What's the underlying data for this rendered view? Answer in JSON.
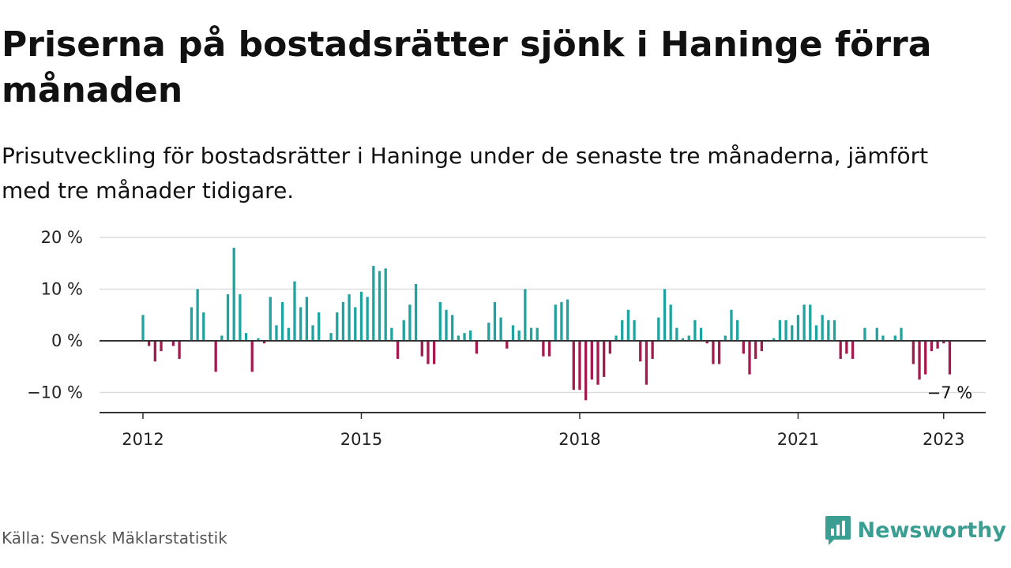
{
  "title": "Priserna på bostadsrätter sjönk i Haninge förra månaden",
  "subtitle": "Prisutveckling för bostadsrätter i Haninge under de senaste tre månaderna, jämfört med tre månader tidigare.",
  "source": "Källa: Svensk Mäklarstatistik",
  "brand": {
    "name": "Newsworthy",
    "icon": "newsworthy-logo-icon",
    "color": "#3a9e93"
  },
  "colors": {
    "positive": "#1fa3a0",
    "negative": "#a31a4f",
    "zero_line": "#333333",
    "grid": "#dcdcdc"
  },
  "chart_data": {
    "type": "bar",
    "x_start": "2012-01",
    "x_ticks": [
      "2012",
      "2015",
      "2018",
      "2021",
      "2023"
    ],
    "y_ticks": [
      "20 %",
      "10 %",
      "0 %",
      "−10 %"
    ],
    "y_tick_values": [
      20,
      10,
      0,
      -10
    ],
    "ylim": [
      -13,
      20
    ],
    "grid": true,
    "end_label": "−7 %",
    "values": [
      5.0,
      -1.0,
      -4.0,
      -2.0,
      0.0,
      -1.0,
      -3.5,
      0.0,
      6.5,
      10.0,
      5.5,
      0.0,
      -6.0,
      1.0,
      9.0,
      18.0,
      9.0,
      1.5,
      -6.0,
      0.5,
      -0.5,
      8.5,
      3.0,
      7.5,
      2.5,
      11.5,
      6.5,
      8.5,
      3.0,
      5.5,
      0.0,
      1.5,
      5.5,
      7.5,
      9.0,
      6.5,
      9.5,
      8.5,
      14.5,
      13.5,
      14.0,
      2.5,
      -3.5,
      4.0,
      7.0,
      11.0,
      -3.0,
      -4.5,
      -4.5,
      7.5,
      6.0,
      5.0,
      1.0,
      1.5,
      2.0,
      -2.5,
      0.0,
      3.5,
      7.5,
      4.5,
      -1.5,
      3.0,
      2.0,
      10.0,
      2.5,
      2.5,
      -3.0,
      -3.0,
      7.0,
      7.5,
      8.0,
      -9.5,
      -9.5,
      -11.5,
      -7.5,
      -8.5,
      -7.0,
      -2.5,
      1.0,
      4.0,
      6.0,
      4.0,
      -4.0,
      -8.5,
      -3.5,
      4.5,
      10.0,
      7.0,
      2.5,
      0.5,
      1.0,
      4.0,
      2.5,
      -0.5,
      -4.5,
      -4.5,
      1.0,
      6.0,
      4.0,
      -2.5,
      -6.5,
      -3.5,
      -2.0,
      0.0,
      0.5,
      4.0,
      4.0,
      3.0,
      5.0,
      7.0,
      7.0,
      3.0,
      5.0,
      4.0,
      4.0,
      -3.5,
      -2.5,
      -3.5,
      0.0,
      2.5,
      0.0,
      2.5,
      1.0,
      0.0,
      1.0,
      2.5,
      0.0,
      -4.5,
      -7.5,
      -6.5,
      -2.0,
      -1.5,
      -0.5,
      -6.5
    ]
  }
}
